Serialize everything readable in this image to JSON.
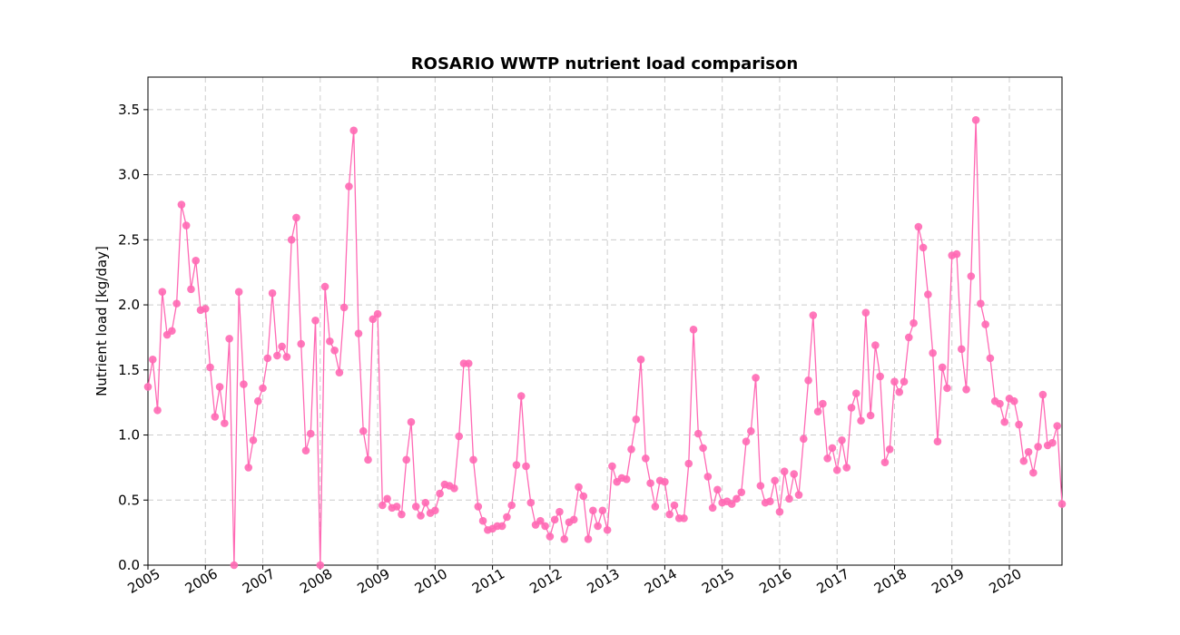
{
  "chart_data": {
    "type": "line",
    "title": "ROSARIO WWTP nutrient load comparison",
    "xlabel": "",
    "ylabel": "Nutrient load [kg/day]",
    "xlim": [
      "2005-01",
      "2020-12"
    ],
    "ylim": [
      0,
      3.75
    ],
    "yticks": [
      0.0,
      0.5,
      1.0,
      1.5,
      2.0,
      2.5,
      3.0,
      3.5
    ],
    "ytick_labels": [
      "0.0",
      "0.5",
      "1.0",
      "1.5",
      "2.0",
      "2.5",
      "3.0",
      "3.5"
    ],
    "xtick_labels": [
      "2005",
      "2006",
      "2007",
      "2008",
      "2009",
      "2010",
      "2011",
      "2012",
      "2013",
      "2014",
      "2015",
      "2016",
      "2017",
      "2018",
      "2019",
      "2020"
    ],
    "grid": true,
    "series": [
      {
        "color": "#ff69b4",
        "marker": "circle",
        "start": "2005-01",
        "frequency": "monthly",
        "values": [
          1.37,
          1.58,
          1.19,
          2.1,
          1.77,
          1.8,
          2.01,
          2.77,
          2.61,
          2.12,
          2.34,
          1.96,
          1.97,
          1.52,
          1.14,
          1.37,
          1.09,
          1.74,
          0.0,
          2.1,
          1.39,
          0.75,
          0.96,
          1.26,
          1.36,
          1.59,
          2.09,
          1.61,
          1.68,
          1.6,
          2.5,
          2.67,
          1.7,
          0.88,
          1.01,
          1.88,
          0.0,
          2.14,
          1.72,
          1.65,
          1.48,
          1.98,
          2.91,
          3.34,
          1.78,
          1.03,
          0.81,
          1.89,
          1.93,
          0.46,
          0.51,
          0.44,
          0.45,
          0.39,
          0.81,
          1.1,
          0.45,
          0.38,
          0.48,
          0.4,
          0.42,
          0.55,
          0.62,
          0.61,
          0.59,
          0.99,
          1.55,
          1.55,
          0.81,
          0.45,
          0.34,
          0.27,
          0.28,
          0.3,
          0.3,
          0.37,
          0.46,
          0.77,
          1.3,
          0.76,
          0.48,
          0.31,
          0.34,
          0.3,
          0.22,
          0.35,
          0.41,
          0.2,
          0.33,
          0.35,
          0.6,
          0.53,
          0.2,
          0.42,
          0.3,
          0.42,
          0.27,
          0.76,
          0.64,
          0.67,
          0.66,
          0.89,
          1.12,
          1.58,
          0.82,
          0.63,
          0.45,
          0.65,
          0.64,
          0.39,
          0.46,
          0.36,
          0.36,
          0.78,
          1.81,
          1.01,
          0.9,
          0.68,
          0.44,
          0.58,
          0.48,
          0.49,
          0.47,
          0.51,
          0.56,
          0.95,
          1.03,
          1.44,
          0.61,
          0.48,
          0.49,
          0.65,
          0.41,
          0.72,
          0.51,
          0.7,
          0.54,
          0.97,
          1.42,
          1.92,
          1.18,
          1.24,
          0.82,
          0.9,
          0.73,
          0.96,
          0.75,
          1.21,
          1.32,
          1.11,
          1.94,
          1.15,
          1.69,
          1.45,
          0.79,
          0.89,
          1.41,
          1.33,
          1.41,
          1.75,
          1.86,
          2.6,
          2.44,
          2.08,
          1.63,
          0.95,
          1.52,
          1.36,
          2.38,
          2.39,
          1.66,
          1.35,
          2.22,
          3.42,
          2.01,
          1.85,
          1.59,
          1.26,
          1.24,
          1.1,
          1.28,
          1.26,
          1.08,
          0.8,
          0.87,
          0.71,
          0.91,
          1.31,
          0.92,
          0.94,
          1.07,
          0.47
        ]
      }
    ]
  }
}
